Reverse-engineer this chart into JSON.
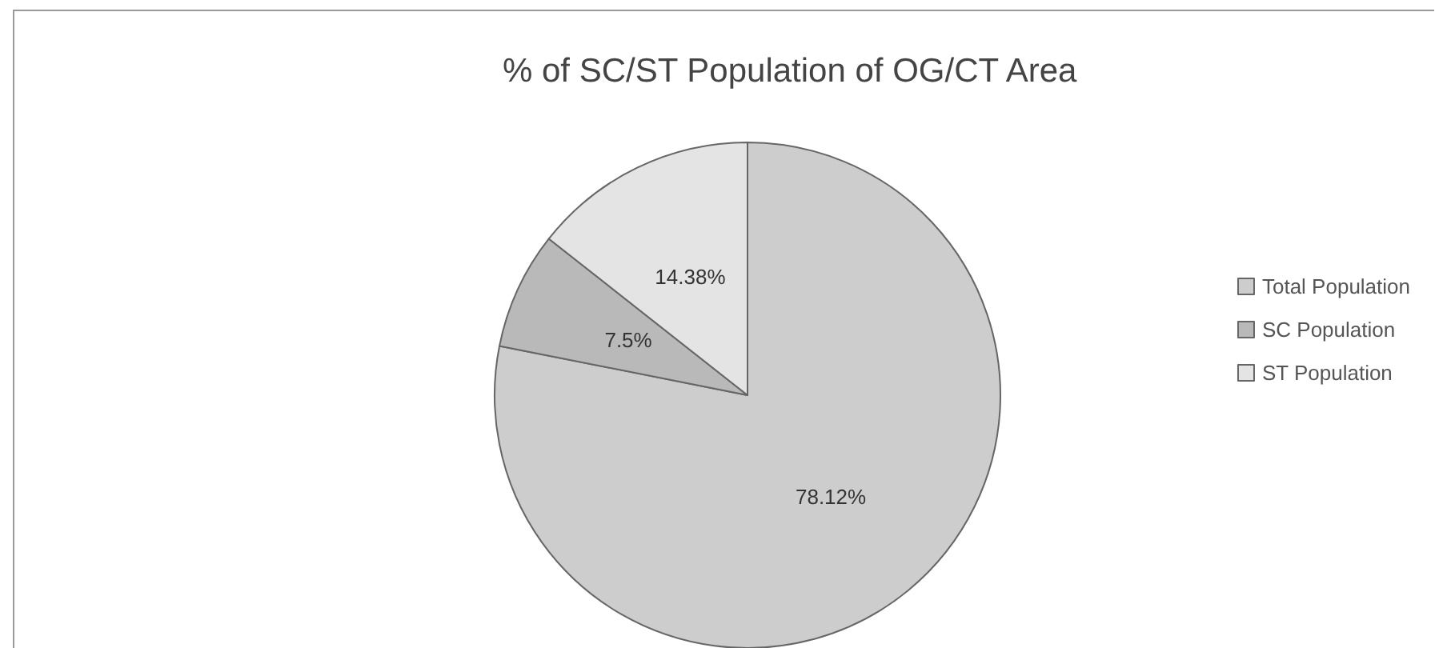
{
  "chart_data": {
    "type": "pie",
    "title": "% of SC/ST Population of OG/CT Area",
    "categories": [
      "Total Population",
      "SC Population",
      "ST Population"
    ],
    "values": [
      78.12,
      7.5,
      14.38
    ],
    "value_labels": [
      "78.12%",
      "7.5%",
      "14.38%"
    ],
    "colors": [
      "#cdcdcd",
      "#b9b9b9",
      "#e4e4e4"
    ],
    "legend": "right"
  }
}
